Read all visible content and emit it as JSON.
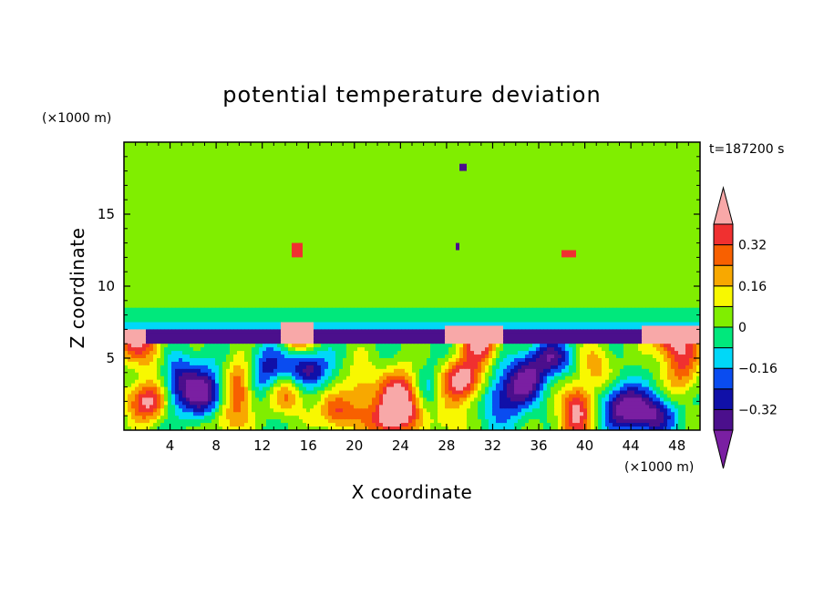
{
  "chart_data": {
    "type": "heatmap",
    "title": "potential temperature deviation",
    "xlabel": "X coordinate",
    "ylabel": "Z coordinate",
    "x_unit": "(×1000 m)",
    "y_unit": "(×1000 m)",
    "time_label": "t=187200 s",
    "xlim": [
      0,
      50
    ],
    "ylim": [
      0,
      20
    ],
    "x_ticks": [
      4,
      8,
      12,
      16,
      20,
      24,
      28,
      32,
      36,
      40,
      44,
      48
    ],
    "y_ticks": [
      5,
      10,
      15
    ],
    "colorbar": {
      "levels": [
        -0.4,
        -0.32,
        -0.24,
        -0.16,
        -0.08,
        0,
        0.08,
        0.16,
        0.24,
        0.32,
        0.4
      ],
      "tick_labels": [
        "0.32",
        "0.16",
        "0",
        "−0.16",
        "−0.32"
      ],
      "tick_values": [
        0.32,
        0.16,
        0,
        -0.16,
        -0.32
      ],
      "colors": [
        "#7a1fa2",
        "#4b0f8c",
        "#1010a8",
        "#0a4cf0",
        "#00d8f8",
        "#00e87c",
        "#80ee00",
        "#f8f800",
        "#f8a800",
        "#f86000",
        "#f03030",
        "#f8a8a8"
      ]
    },
    "features": [
      {
        "kind": "band",
        "desc": "upper stratosphere near-zero",
        "x": [
          0,
          50
        ],
        "z": [
          7.5,
          20
        ],
        "value": 0.04
      },
      {
        "kind": "band",
        "desc": "inversion layer strong negative",
        "x": [
          0,
          50
        ],
        "z": [
          5.5,
          7.2
        ],
        "value": -0.36
      },
      {
        "kind": "band",
        "desc": "boundary layer mixed",
        "x": [
          0,
          50
        ],
        "z": [
          0,
          5.5
        ],
        "value": 0.0
      },
      {
        "kind": "blob",
        "x": [
          24,
          30
        ],
        "z": [
          0,
          5
        ],
        "value": 0.4
      },
      {
        "kind": "blob",
        "x": [
          28,
          33
        ],
        "z": [
          4,
          7
        ],
        "value": 0.4
      },
      {
        "kind": "blob",
        "x": [
          6,
          9
        ],
        "z": [
          1,
          5
        ],
        "value": -0.36
      },
      {
        "kind": "blob",
        "x": [
          42,
          47
        ],
        "z": [
          0.5,
          2.5
        ],
        "value": -0.36
      }
    ]
  }
}
